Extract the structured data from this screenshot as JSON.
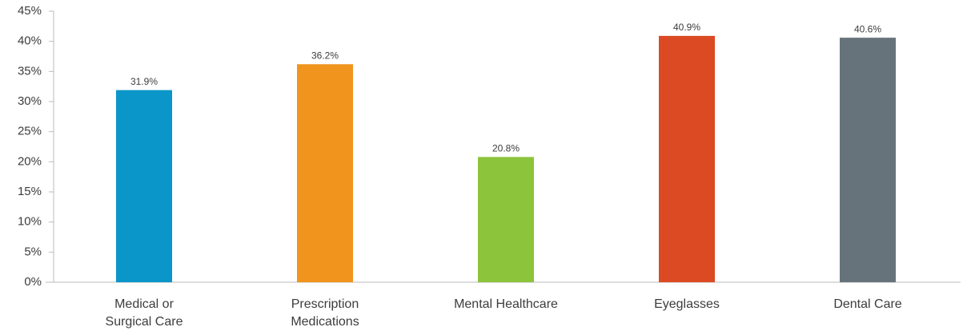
{
  "chart_data": {
    "type": "bar",
    "categories": [
      "Medical or Surgical Care",
      "Prescription Medications",
      "Mental Healthcare",
      "Eyeglasses",
      "Dental Care"
    ],
    "values": [
      31.9,
      36.2,
      20.8,
      40.9,
      40.6
    ],
    "value_labels": [
      "31.9%",
      "36.2%",
      "20.8%",
      "40.9%",
      "40.6%"
    ],
    "colors": [
      "#0a96c8",
      "#f0941e",
      "#8cc43c",
      "#dc4a24",
      "#67737a"
    ],
    "ylim": [
      0,
      45
    ],
    "yticks": [
      {
        "value": 0,
        "label": "0%"
      },
      {
        "value": 5,
        "label": "5%"
      },
      {
        "value": 10,
        "label": "10%"
      },
      {
        "value": 15,
        "label": "15%"
      },
      {
        "value": 20,
        "label": "20%"
      },
      {
        "value": 25,
        "label": "25%"
      },
      {
        "value": 30,
        "label": "30%"
      },
      {
        "value": 35,
        "label": "35%"
      },
      {
        "value": 40,
        "label": "40%"
      },
      {
        "value": 45,
        "label": "45%"
      }
    ],
    "grid": false
  }
}
